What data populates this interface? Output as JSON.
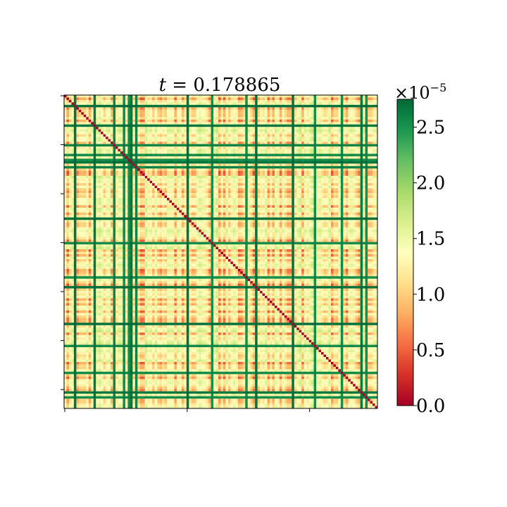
{
  "chart_data": {
    "type": "heatmap",
    "title_var": "t",
    "title_eq": " = ",
    "title_value": "0.178865",
    "n": 128,
    "colormap": "RdYlGn",
    "value_range": [
      0,
      2.75
    ],
    "diagonal_value": 0.0,
    "x_ticks": [
      "",
      "",
      ""
    ],
    "y_ticks": [
      "",
      "",
      "",
      "",
      "",
      "",
      ""
    ],
    "colorbar": {
      "multiplier_prefix": "×10",
      "multiplier_exp": "−5",
      "tick_values": [
        0.0,
        0.5,
        1.0,
        1.5,
        2.0,
        2.5
      ],
      "tick_labels": [
        "0.0",
        "0.5",
        "1.0",
        "1.5",
        "2.0",
        "2.5"
      ]
    }
  }
}
